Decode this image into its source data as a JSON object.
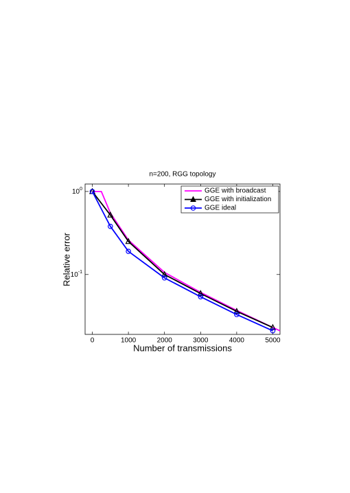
{
  "chart_data": {
    "type": "line",
    "title": "n=200, RGG topology",
    "x_label": "Number of transmissions",
    "y_label": "Relative error",
    "xlim": [
      -200,
      5200
    ],
    "xticks": [
      0,
      1000,
      2000,
      3000,
      4000,
      5000
    ],
    "ylim": [
      0.019,
      1.23
    ],
    "y_scale": "log",
    "yticks": [
      {
        "value": 0.1,
        "label": "10^-1"
      },
      {
        "value": 1,
        "label": "10^0"
      }
    ],
    "legend": "upper right",
    "series": [
      {
        "name": "GGE with broadcast",
        "color": "#ff00ff",
        "marker": "none",
        "x": [
          0,
          250,
          500,
          1000,
          2000,
          3000,
          4000,
          5000,
          5200
        ],
        "values": [
          1,
          1,
          0.55,
          0.26,
          0.106,
          0.061,
          0.037,
          0.023,
          0.021
        ]
      },
      {
        "name": "GGE with initialization",
        "color": "#000000",
        "marker": "triangle",
        "x": [
          0,
          500,
          1000,
          2000,
          3000,
          4000,
          5000
        ],
        "values": [
          1,
          0.52,
          0.25,
          0.1,
          0.059,
          0.036,
          0.023
        ]
      },
      {
        "name": "GGE ideal",
        "color": "#0000ff",
        "marker": "circle",
        "x": [
          0,
          500,
          1000,
          2000,
          3000,
          4000,
          5000
        ],
        "values": [
          1,
          0.38,
          0.19,
          0.091,
          0.054,
          0.033,
          0.021
        ]
      }
    ]
  }
}
